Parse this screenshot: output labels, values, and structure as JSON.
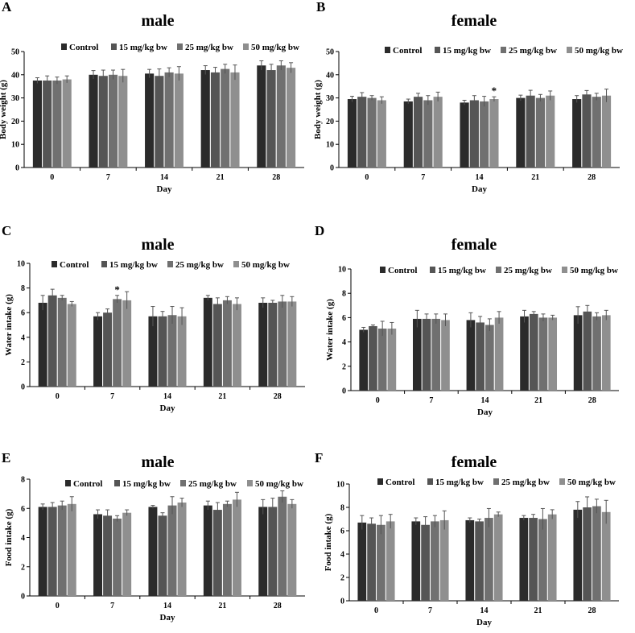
{
  "figure": {
    "series_colors": [
      "#2b2b2b",
      "#555555",
      "#707070",
      "#8f8f8f"
    ]
  },
  "chart_data": [
    {
      "panel": "A",
      "type": "bar",
      "title": "male",
      "xlabel": "Day",
      "ylabel": "Body weight (g)",
      "categories": [
        "0",
        "7",
        "14",
        "21",
        "28"
      ],
      "ylim": [
        0,
        50
      ],
      "yticks": [
        0,
        10,
        20,
        30,
        40,
        50
      ],
      "grid": false,
      "legend": "top",
      "series": [
        {
          "name": "Control",
          "values": [
            37.5,
            40.0,
            40.5,
            42.0,
            44.0
          ],
          "errors": [
            1.2,
            1.8,
            1.8,
            1.9,
            2.0
          ]
        },
        {
          "name": "15 mg/kg bw",
          "values": [
            37.5,
            39.5,
            39.5,
            41.0,
            42.0
          ],
          "errors": [
            2.0,
            2.5,
            3.0,
            2.2,
            2.5
          ]
        },
        {
          "name": "25 mg/kg bw",
          "values": [
            37.5,
            40.0,
            41.0,
            42.5,
            44.0
          ],
          "errors": [
            1.5,
            2.0,
            2.0,
            2.0,
            2.0
          ]
        },
        {
          "name": "50 mg/kg bw",
          "values": [
            38.0,
            39.5,
            40.5,
            41.0,
            43.0
          ],
          "errors": [
            1.5,
            2.8,
            3.0,
            3.2,
            2.2
          ]
        }
      ],
      "annotations": []
    },
    {
      "panel": "B",
      "type": "bar",
      "title": "female",
      "xlabel": "Day",
      "ylabel": "Body weight (g)",
      "categories": [
        "0",
        "7",
        "14",
        "21",
        "28"
      ],
      "ylim": [
        0,
        50
      ],
      "yticks": [
        0,
        10,
        20,
        30,
        40,
        50
      ],
      "grid": false,
      "legend": "top",
      "series": [
        {
          "name": "Control",
          "values": [
            29.5,
            28.5,
            28.0,
            30.0,
            29.5
          ],
          "errors": [
            1.2,
            1.0,
            1.0,
            1.2,
            1.5
          ]
        },
        {
          "name": "15 mg/kg bw",
          "values": [
            30.5,
            30.5,
            29.0,
            31.0,
            31.5
          ],
          "errors": [
            1.8,
            1.5,
            2.0,
            2.3,
            1.7
          ]
        },
        {
          "name": "25 mg/kg bw",
          "values": [
            30.0,
            29.0,
            28.5,
            30.0,
            30.5
          ],
          "errors": [
            1.0,
            2.0,
            2.2,
            1.5,
            1.5
          ]
        },
        {
          "name": "50 mg/kg bw",
          "values": [
            29.0,
            30.5,
            29.5,
            31.0,
            31.0
          ],
          "errors": [
            1.5,
            2.0,
            1.0,
            2.0,
            2.8
          ]
        }
      ],
      "annotations": [
        {
          "text": "*",
          "category": "14",
          "series": "50 mg/kg bw"
        }
      ]
    },
    {
      "panel": "C",
      "type": "bar",
      "title": "male",
      "xlabel": "Day",
      "ylabel": "Water intake (g)",
      "categories": [
        "0",
        "7",
        "14",
        "21",
        "28"
      ],
      "ylim": [
        0,
        10
      ],
      "yticks": [
        0,
        2,
        4,
        6,
        8,
        10
      ],
      "grid": false,
      "legend": "top",
      "series": [
        {
          "name": "Control",
          "values": [
            6.8,
            5.7,
            5.7,
            7.2,
            6.8
          ],
          "errors": [
            0.6,
            0.3,
            0.8,
            0.2,
            0.4
          ]
        },
        {
          "name": "15 mg/kg bw",
          "values": [
            7.4,
            6.0,
            5.7,
            6.7,
            6.8
          ],
          "errors": [
            0.5,
            0.3,
            0.4,
            0.5,
            0.2
          ]
        },
        {
          "name": "25 mg/kg bw",
          "values": [
            7.2,
            7.1,
            5.8,
            7.0,
            6.9
          ],
          "errors": [
            0.2,
            0.3,
            0.7,
            0.3,
            0.5
          ]
        },
        {
          "name": "50 mg/kg bw",
          "values": [
            6.7,
            7.0,
            5.7,
            6.7,
            6.9
          ],
          "errors": [
            0.2,
            0.7,
            0.7,
            0.5,
            0.4
          ]
        }
      ],
      "annotations": [
        {
          "text": "*",
          "category": "7",
          "series": "25 mg/kg bw"
        }
      ]
    },
    {
      "panel": "D",
      "type": "bar",
      "title": "female",
      "xlabel": "Day",
      "ylabel": "Water intake (g)",
      "categories": [
        "0",
        "7",
        "14",
        "21",
        "28"
      ],
      "ylim": [
        0,
        10
      ],
      "yticks": [
        0,
        2,
        4,
        6,
        8,
        10
      ],
      "grid": false,
      "legend": "top",
      "series": [
        {
          "name": "Control",
          "values": [
            5.0,
            5.9,
            5.8,
            6.1,
            6.2
          ],
          "errors": [
            0.2,
            0.7,
            0.6,
            0.5,
            0.7
          ]
        },
        {
          "name": "15 mg/kg bw",
          "values": [
            5.3,
            5.9,
            5.6,
            6.3,
            6.5
          ],
          "errors": [
            0.1,
            0.4,
            0.5,
            0.2,
            0.5
          ]
        },
        {
          "name": "25 mg/kg bw",
          "values": [
            5.1,
            5.9,
            5.4,
            6.0,
            6.1
          ],
          "errors": [
            0.6,
            0.4,
            0.5,
            0.3,
            0.3
          ]
        },
        {
          "name": "50 mg/kg bw",
          "values": [
            5.1,
            5.8,
            6.0,
            6.0,
            6.2
          ],
          "errors": [
            0.5,
            0.5,
            0.5,
            0.2,
            0.4
          ]
        }
      ],
      "annotations": []
    },
    {
      "panel": "E",
      "type": "bar",
      "title": "male",
      "xlabel": "Day",
      "ylabel": "Food intake (g)",
      "categories": [
        "0",
        "7",
        "14",
        "21",
        "28"
      ],
      "ylim": [
        0,
        8
      ],
      "yticks": [
        0,
        2,
        4,
        6,
        8
      ],
      "grid": false,
      "legend": "top",
      "series": [
        {
          "name": "Control",
          "values": [
            6.1,
            5.6,
            6.1,
            6.2,
            6.1
          ],
          "errors": [
            0.2,
            0.3,
            0.1,
            0.3,
            0.5
          ]
        },
        {
          "name": "15 mg/kg bw",
          "values": [
            6.1,
            5.5,
            5.5,
            5.9,
            6.1
          ],
          "errors": [
            0.3,
            0.4,
            0.2,
            0.5,
            0.6
          ]
        },
        {
          "name": "25 mg/kg bw",
          "values": [
            6.2,
            5.3,
            6.2,
            6.3,
            6.8
          ],
          "errors": [
            0.3,
            0.2,
            0.6,
            0.2,
            0.4
          ]
        },
        {
          "name": "50 mg/kg bw",
          "values": [
            6.3,
            5.7,
            6.4,
            6.6,
            6.3
          ],
          "errors": [
            0.5,
            0.2,
            0.3,
            0.5,
            0.3
          ]
        }
      ],
      "annotations": []
    },
    {
      "panel": "F",
      "type": "bar",
      "title": "female",
      "xlabel": "Day",
      "ylabel": "Food intake (g)",
      "categories": [
        "0",
        "7",
        "14",
        "21",
        "28"
      ],
      "ylim": [
        0,
        10
      ],
      "yticks": [
        0,
        2,
        4,
        6,
        8,
        10
      ],
      "grid": false,
      "legend": "top",
      "series": [
        {
          "name": "Control",
          "values": [
            6.7,
            6.8,
            6.9,
            7.1,
            7.8
          ],
          "errors": [
            0.6,
            0.3,
            0.2,
            0.2,
            0.7
          ]
        },
        {
          "name": "15 mg/kg bw",
          "values": [
            6.6,
            6.5,
            6.8,
            7.1,
            8.0
          ],
          "errors": [
            0.5,
            0.7,
            0.2,
            0.3,
            0.9
          ]
        },
        {
          "name": "25 mg/kg bw",
          "values": [
            6.5,
            6.8,
            7.1,
            7.0,
            8.1
          ],
          "errors": [
            0.8,
            0.5,
            0.8,
            0.9,
            0.6
          ]
        },
        {
          "name": "50 mg/kg bw",
          "values": [
            6.8,
            6.9,
            7.4,
            7.4,
            7.6
          ],
          "errors": [
            0.6,
            0.8,
            0.2,
            0.4,
            1.0
          ]
        }
      ],
      "annotations": []
    }
  ]
}
